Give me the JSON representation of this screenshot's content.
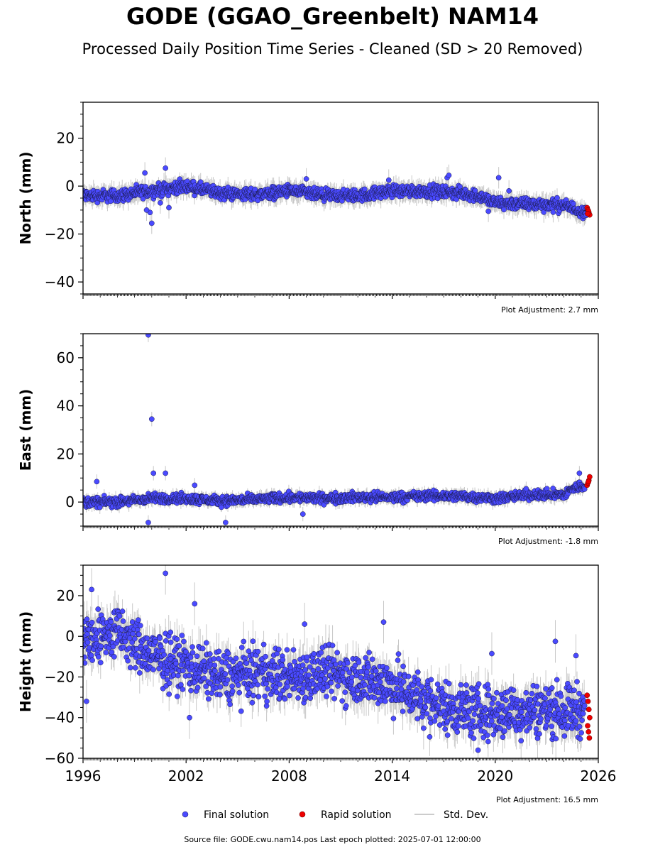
{
  "figure": {
    "title": "GODE (GGAO_Greenbelt) NAM14",
    "subtitle": "Processed Daily Position Time Series - Cleaned (SD > 20 Removed)",
    "footer": "Source file: GODE.cwu.nam14.pos  Last epoch plotted: 2025-07-01 12:00:00",
    "colors": {
      "final": "#4a4aff",
      "rapid": "#ee0000",
      "std": "#bbbbbb",
      "edge": "#1a1a4a"
    }
  },
  "legend": {
    "placement": "bottom-center",
    "items": [
      {
        "label": "Final solution",
        "kind": "final"
      },
      {
        "label": "Rapid solution",
        "kind": "rapid"
      },
      {
        "label": "Std. Dev.",
        "kind": "std"
      }
    ]
  },
  "chart_data": [
    {
      "type": "scatter",
      "ylabel": "North (mm)",
      "adjustment": "Plot Adjustment: 2.7 mm",
      "xlim": [
        1996,
        2026
      ],
      "ylim": [
        -45,
        35
      ],
      "yticks": [
        -40,
        -20,
        0,
        20
      ],
      "final_trend": [
        [
          1996,
          -4
        ],
        [
          1998,
          -4
        ],
        [
          2000,
          -2
        ],
        [
          2002,
          0
        ],
        [
          2004,
          -3
        ],
        [
          2006,
          -3.5
        ],
        [
          2008,
          -2
        ],
        [
          2010,
          -4
        ],
        [
          2012,
          -4
        ],
        [
          2014,
          -2
        ],
        [
          2016,
          -2
        ],
        [
          2018,
          -3
        ],
        [
          2019,
          -4
        ],
        [
          2020,
          -7
        ],
        [
          2022,
          -7.5
        ],
        [
          2024,
          -8
        ],
        [
          2025.3,
          -11
        ]
      ],
      "final_scatter": 2.2,
      "std_spread": 3,
      "outliers": [
        [
          1999.6,
          5.5
        ],
        [
          1999.9,
          -11
        ],
        [
          2000.0,
          -15.5
        ],
        [
          2000.8,
          7.5
        ],
        [
          2000.5,
          -7
        ],
        [
          2001.0,
          -9
        ],
        [
          2009.0,
          3
        ],
        [
          2013.8,
          2.5
        ],
        [
          2017.2,
          3.5
        ],
        [
          2017.3,
          4.5
        ],
        [
          2020.2,
          3.5
        ],
        [
          2020.8,
          -2
        ],
        [
          2019.6,
          -10.5
        ],
        [
          1999.7,
          -10
        ]
      ],
      "rapid": [
        [
          2025.35,
          -9
        ],
        [
          2025.4,
          -10
        ],
        [
          2025.45,
          -11
        ],
        [
          2025.5,
          -12
        ],
        [
          2025.43,
          -10.5
        ],
        [
          2025.38,
          -11.5
        ]
      ]
    },
    {
      "type": "scatter",
      "ylabel": "East (mm)",
      "adjustment": "Plot Adjustment: -1.8 mm",
      "xlim": [
        1996,
        2026
      ],
      "ylim": [
        -10,
        70
      ],
      "yticks": [
        0,
        20,
        40,
        60
      ],
      "final_trend": [
        [
          1996,
          0
        ],
        [
          1998,
          0
        ],
        [
          2000,
          1.5
        ],
        [
          2002,
          1.5
        ],
        [
          2004,
          0.5
        ],
        [
          2006,
          1
        ],
        [
          2008,
          2
        ],
        [
          2010,
          1.5
        ],
        [
          2012,
          2
        ],
        [
          2014,
          2
        ],
        [
          2016,
          2.5
        ],
        [
          2018,
          2.5
        ],
        [
          2020,
          1.5
        ],
        [
          2022,
          3
        ],
        [
          2024,
          3
        ],
        [
          2024.5,
          5.5
        ],
        [
          2025.2,
          7
        ]
      ],
      "final_scatter": 1.7,
      "std_spread": 2,
      "outliers": [
        [
          1999.8,
          69.5
        ],
        [
          2000.0,
          34.5
        ],
        [
          2000.1,
          12
        ],
        [
          2000.8,
          12
        ],
        [
          1996.8,
          8.5
        ],
        [
          1999.8,
          -8.5
        ],
        [
          2004.3,
          -8.5
        ],
        [
          2008.8,
          -5
        ],
        [
          2024.9,
          12
        ],
        [
          2002.5,
          7
        ],
        [
          2021.8,
          5.5
        ]
      ],
      "rapid": [
        [
          2025.35,
          7
        ],
        [
          2025.4,
          8
        ],
        [
          2025.45,
          9
        ],
        [
          2025.5,
          10.5
        ],
        [
          2025.43,
          8.5
        ]
      ]
    },
    {
      "type": "scatter",
      "ylabel": "Height (mm)",
      "adjustment": "Plot Adjustment: 16.5 mm",
      "xlim": [
        1996,
        2026
      ],
      "ylim": [
        -60,
        35
      ],
      "yticks": [
        -60,
        -40,
        -20,
        0,
        20
      ],
      "xticks": [
        1996,
        2002,
        2008,
        2014,
        2020,
        2026
      ],
      "final_trend": [
        [
          1996,
          -2
        ],
        [
          1998,
          2
        ],
        [
          2000,
          -10
        ],
        [
          2002,
          -14
        ],
        [
          2004,
          -20
        ],
        [
          2006,
          -18
        ],
        [
          2008,
          -20
        ],
        [
          2010,
          -18
        ],
        [
          2012,
          -20
        ],
        [
          2014,
          -24
        ],
        [
          2016,
          -32
        ],
        [
          2018,
          -36
        ],
        [
          2020,
          -38
        ],
        [
          2022,
          -36
        ],
        [
          2024,
          -36
        ],
        [
          2025.2,
          -36
        ]
      ],
      "final_scatter": 11,
      "std_spread": 7,
      "outliers": [
        [
          2000.8,
          31
        ],
        [
          1996.5,
          23
        ],
        [
          1996.2,
          -32
        ],
        [
          2001.1,
          -11
        ],
        [
          2002.5,
          16
        ],
        [
          2008.9,
          6
        ],
        [
          2013.5,
          7
        ],
        [
          2019.8,
          -8.5
        ],
        [
          2023.5,
          -2.5
        ],
        [
          2024.7,
          -9.5
        ],
        [
          2019.0,
          -56
        ],
        [
          2002.2,
          -40
        ]
      ],
      "rapid": [
        [
          2025.35,
          -29
        ],
        [
          2025.4,
          -32
        ],
        [
          2025.45,
          -36
        ],
        [
          2025.5,
          -40
        ],
        [
          2025.38,
          -44
        ],
        [
          2025.43,
          -47
        ],
        [
          2025.48,
          -50
        ]
      ]
    }
  ]
}
